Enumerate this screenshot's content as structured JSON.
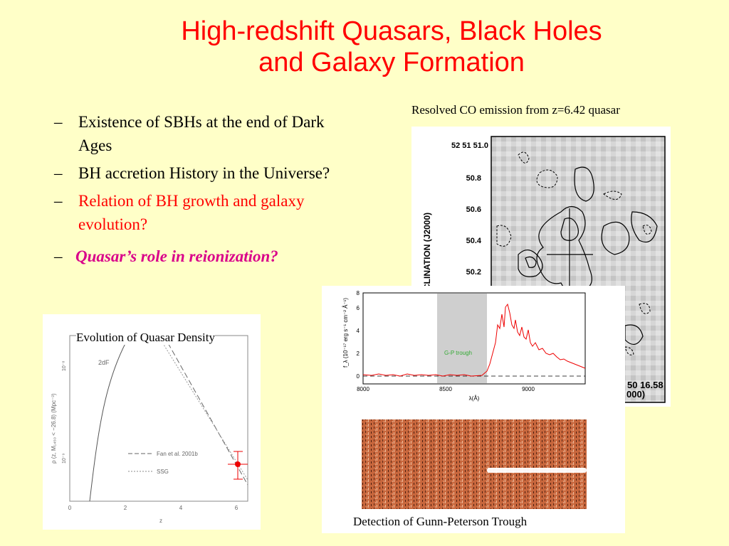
{
  "slide": {
    "title_line1": "High-redshift Quasars, Black Holes",
    "title_line2": "and Galaxy Formation",
    "bullets": [
      {
        "dash": "–",
        "text": "Existence of SBHs at the end of Dark Ages"
      },
      {
        "dash": "–",
        "text": "BH accretion History in the Universe?"
      },
      {
        "dash": "–",
        "text": "Relation of BH growth and galaxy evolution?"
      },
      {
        "dash": "–",
        "text": "Quasar’s role in reionization?"
      }
    ],
    "colors": {
      "background": "#ffffc8",
      "title": "#ff0000",
      "emphasis": "#d9008a"
    }
  },
  "co_map": {
    "caption": "Resolved CO emission from z=6.42 quasar",
    "y_ticks": [
      "52 51 51.0",
      "50.8",
      "50.6",
      "50.4",
      "50.2"
    ],
    "y_label": "CLINATION (J2000)",
    "x_fragment": "50 16.58",
    "x_label_fragment": "000)"
  },
  "density_plot": {
    "caption": "Evolution of Quasar Density",
    "curve_label": "2dF",
    "legend": [
      "Fan et al. 2001b",
      "SSG"
    ],
    "x_ticks": [
      "0",
      "2",
      "4",
      "6"
    ],
    "x_label": "z",
    "y_tick_top": "10⁻⁸",
    "y_tick_mid": "10⁻⁹",
    "y_label": "ρ (z, M₁₄₅₀ < −26.8) (Mpc⁻³)"
  },
  "spectrum": {
    "x_ticks": [
      "8000",
      "8500",
      "9000"
    ],
    "x_label": "λ(Å)",
    "y_ticks": [
      "0",
      "2",
      "4",
      "6",
      "8"
    ],
    "y_label": "f_λ (10⁻¹⁷ erg s⁻¹ cm⁻² Å⁻¹)",
    "band_label": "G-P trough"
  },
  "gp_image": {
    "caption": "Detection of Gunn-Peterson Trough"
  }
}
